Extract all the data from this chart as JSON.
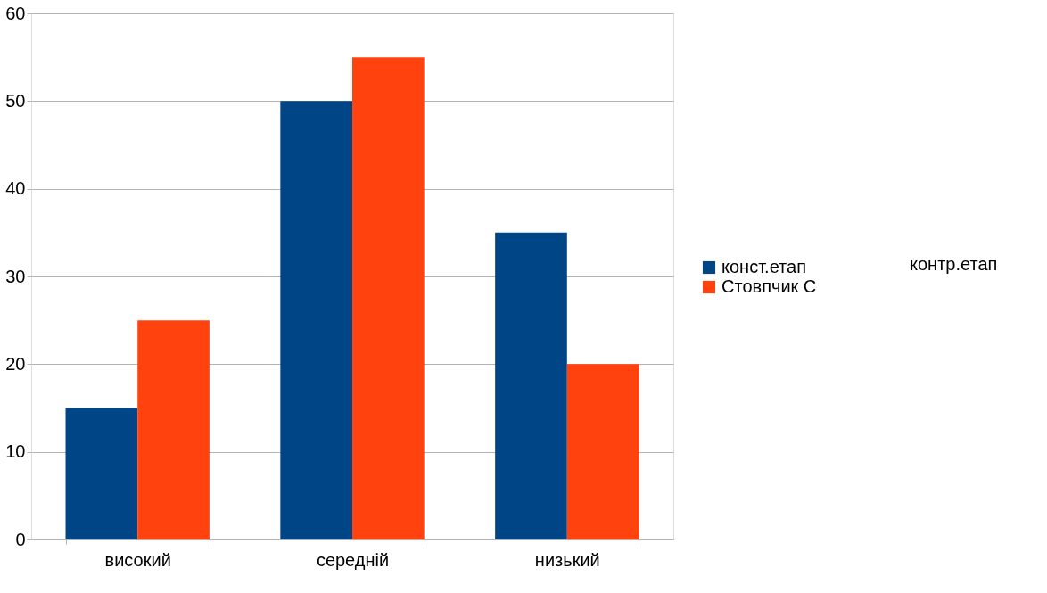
{
  "chart_data": {
    "type": "bar",
    "categories": [
      "високий",
      "середній",
      "низький"
    ],
    "series": [
      {
        "name": "конст.етап",
        "color": "#004586",
        "values": [
          15,
          50,
          35
        ]
      },
      {
        "name": "Стовпчик C",
        "color": "#ff420e",
        "values": [
          25,
          55,
          20
        ]
      }
    ],
    "ylim": [
      0,
      60
    ],
    "yticks": [
      0,
      10,
      20,
      30,
      40,
      50,
      60
    ],
    "grid": "y",
    "legend": "right",
    "annotations": [
      "контр.етап"
    ]
  }
}
